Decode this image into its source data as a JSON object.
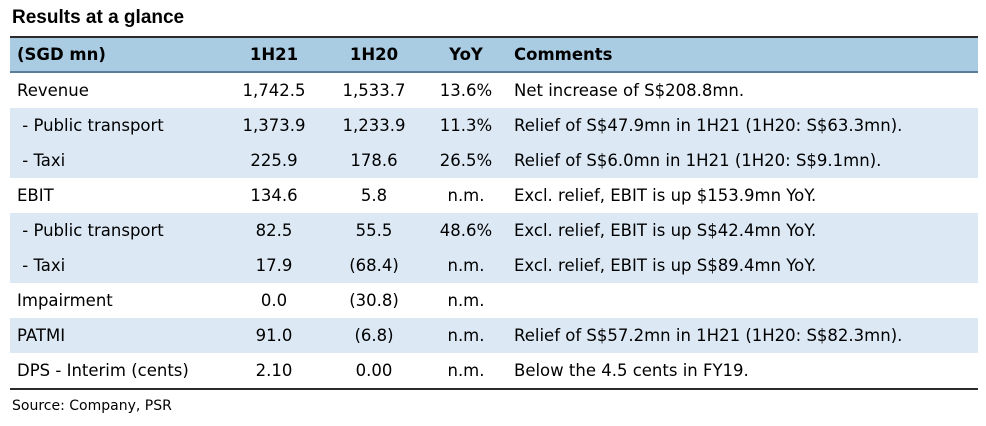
{
  "title": "Results at a glance",
  "headers": {
    "label": "(SGD mn)",
    "h1": "1H21",
    "h2": "1H20",
    "yoy": "YoY",
    "comments": "Comments"
  },
  "rows": [
    {
      "label": "Revenue",
      "h1": "1,742.5",
      "h2": "1,533.7",
      "yoy": "13.6%",
      "comment": "Net increase of S$208.8mn."
    },
    {
      "label": " - Public transport",
      "h1": "1,373.9",
      "h2": "1,233.9",
      "yoy": "11.3%",
      "comment": "Relief of S$47.9mn in 1H21 (1H20: S$63.3mn)."
    },
    {
      "label": " - Taxi",
      "h1": "225.9",
      "h2": "178.6",
      "yoy": "26.5%",
      "comment": "Relief of S$6.0mn in 1H21 (1H20: S$9.1mn)."
    },
    {
      "label": "EBIT",
      "h1": "134.6",
      "h2": "5.8",
      "yoy": "n.m.",
      "comment": "Excl. relief, EBIT is up $153.9mn YoY."
    },
    {
      "label": " - Public transport",
      "h1": "82.5",
      "h2": "55.5",
      "yoy": "48.6%",
      "comment": "Excl. relief, EBIT is up S$42.4mn YoY."
    },
    {
      "label": " - Taxi",
      "h1": "17.9",
      "h2": "(68.4)",
      "yoy": "n.m.",
      "comment": "Excl. relief, EBIT is up S$89.4mn YoY."
    },
    {
      "label": "Impairment",
      "h1": "0.0",
      "h2": "(30.8)",
      "yoy": "n.m.",
      "comment": ""
    },
    {
      "label": "PATMI",
      "h1": "91.0",
      "h2": "(6.8)",
      "yoy": "n.m.",
      "comment": "Relief of S$57.2mn in 1H21 (1H20: S$82.3mn)."
    },
    {
      "label": "DPS - Interim (cents)",
      "h1": "2.10",
      "h2": "0.00",
      "yoy": "n.m.",
      "comment": "Below the 4.5 cents in FY19."
    }
  ],
  "source": "Source: Company, PSR",
  "colors": {
    "header_bg": "#a9cce3",
    "row_shade": "#dce9f5"
  }
}
